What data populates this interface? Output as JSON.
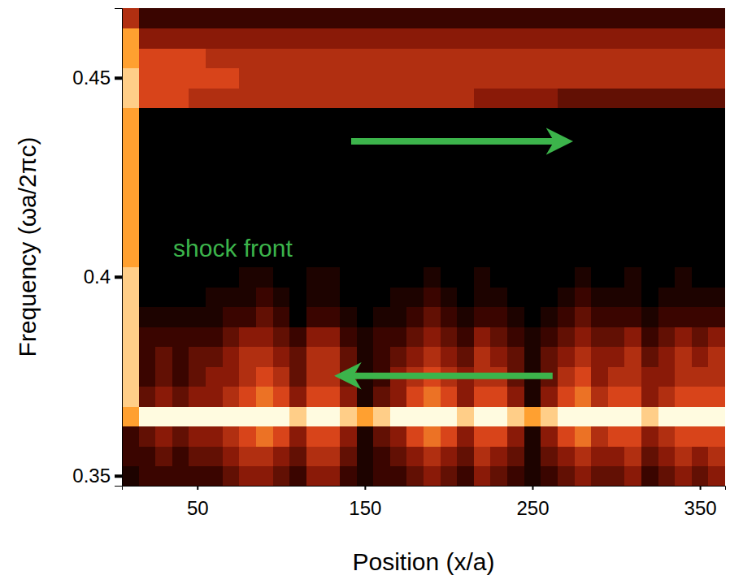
{
  "chart_data": {
    "type": "heatmap",
    "xlabel": "Position (x/a)",
    "ylabel": "Frequency (ωa/2πc)",
    "annotations": [
      "shock front"
    ],
    "xlim": [
      5,
      365
    ],
    "ylim": [
      0.3475,
      0.4675
    ],
    "xticks": [
      50,
      150,
      250,
      350
    ],
    "yticks": [
      0.35,
      0.4,
      0.45
    ],
    "zlim": [
      0,
      10
    ],
    "x_bins": [
      5,
      15,
      25,
      35,
      45,
      55,
      65,
      75,
      85,
      95,
      105,
      115,
      125,
      135,
      145,
      155,
      165,
      175,
      185,
      195,
      205,
      215,
      225,
      235,
      245,
      255,
      265,
      275,
      285,
      295,
      305,
      315,
      325,
      335,
      345,
      355,
      365
    ],
    "y_bins": [
      0.3475,
      0.3525,
      0.3575,
      0.3625,
      0.3675,
      0.3725,
      0.3775,
      0.3825,
      0.3875,
      0.3925,
      0.3975,
      0.4025,
      0.4075,
      0.4125,
      0.4175,
      0.4225,
      0.4275,
      0.4325,
      0.4375,
      0.4425,
      0.4475,
      0.4525,
      0.4575,
      0.4625,
      0.4675
    ],
    "cells": [
      [
        1,
        2,
        2,
        2,
        2,
        2,
        3,
        4,
        4,
        3,
        2,
        4,
        4,
        2,
        1,
        2,
        2,
        3,
        4,
        3,
        2,
        4,
        3,
        2,
        1,
        2,
        3,
        4,
        3,
        3,
        4,
        2,
        3,
        4,
        3,
        4
      ],
      [
        2,
        2,
        3,
        2,
        3,
        3,
        4,
        5,
        5,
        4,
        3,
        5,
        5,
        3,
        1,
        2,
        3,
        4,
        5,
        4,
        3,
        5,
        4,
        3,
        1,
        3,
        4,
        5,
        4,
        4,
        5,
        3,
        4,
        5,
        4,
        5
      ],
      [
        2,
        3,
        4,
        3,
        4,
        4,
        5,
        6,
        7,
        6,
        4,
        6,
        6,
        4,
        1,
        3,
        4,
        6,
        7,
        6,
        4,
        6,
        6,
        4,
        1,
        4,
        6,
        7,
        5,
        6,
        6,
        4,
        5,
        6,
        6,
        6
      ],
      [
        8,
        10,
        10,
        10,
        10,
        10,
        10,
        10,
        10,
        10,
        9,
        10,
        10,
        9,
        8,
        9,
        10,
        10,
        10,
        10,
        9,
        10,
        10,
        9,
        8,
        9,
        10,
        10,
        10,
        10,
        10,
        9,
        10,
        10,
        10,
        10
      ],
      [
        9,
        3,
        4,
        3,
        4,
        4,
        5,
        6,
        7,
        6,
        4,
        6,
        6,
        4,
        1,
        3,
        4,
        6,
        7,
        6,
        4,
        6,
        6,
        4,
        1,
        4,
        6,
        7,
        5,
        6,
        6,
        4,
        5,
        6,
        6,
        6
      ],
      [
        9,
        2,
        3,
        2,
        3,
        4,
        4,
        5,
        6,
        5,
        3,
        5,
        5,
        3,
        1,
        2,
        4,
        5,
        6,
        5,
        4,
        5,
        5,
        3,
        1,
        3,
        5,
        6,
        4,
        5,
        5,
        4,
        4,
        5,
        5,
        5
      ],
      [
        9,
        2,
        3,
        2,
        3,
        3,
        4,
        5,
        5,
        4,
        3,
        5,
        5,
        3,
        1,
        2,
        3,
        4,
        5,
        4,
        3,
        5,
        4,
        3,
        1,
        3,
        4,
        5,
        4,
        4,
        5,
        3,
        4,
        5,
        4,
        5
      ],
      [
        9,
        2,
        2,
        2,
        2,
        2,
        3,
        4,
        4,
        3,
        2,
        4,
        4,
        2,
        1,
        2,
        2,
        3,
        4,
        3,
        2,
        4,
        3,
        2,
        1,
        2,
        3,
        4,
        3,
        3,
        4,
        2,
        3,
        4,
        3,
        4
      ],
      [
        9,
        1,
        1,
        1,
        1,
        1,
        2,
        2,
        3,
        2,
        0,
        2,
        2,
        1,
        0,
        1,
        1,
        2,
        3,
        2,
        1,
        2,
        2,
        1,
        0,
        1,
        2,
        3,
        2,
        2,
        2,
        1,
        2,
        2,
        2,
        2
      ],
      [
        9,
        0,
        0,
        0,
        0,
        1,
        1,
        1,
        2,
        1,
        0,
        1,
        1,
        0,
        0,
        0,
        1,
        1,
        2,
        1,
        0,
        1,
        1,
        0,
        0,
        0,
        1,
        2,
        1,
        1,
        1,
        0,
        1,
        1,
        1,
        1
      ],
      [
        9,
        0,
        0,
        0,
        0,
        0,
        0,
        1,
        1,
        0,
        0,
        1,
        1,
        0,
        0,
        0,
        0,
        0,
        1,
        0,
        0,
        1,
        0,
        0,
        0,
        0,
        0,
        1,
        0,
        0,
        1,
        0,
        0,
        1,
        0,
        0
      ],
      [
        8,
        0,
        0,
        0,
        0,
        0,
        0,
        0,
        0,
        0,
        0,
        0,
        0,
        0,
        0,
        0,
        0,
        0,
        0,
        0,
        0,
        0,
        0,
        0,
        0,
        0,
        0,
        0,
        0,
        0,
        0,
        0,
        0,
        0,
        0,
        0
      ],
      [
        8,
        0,
        0,
        0,
        0,
        0,
        0,
        0,
        0,
        0,
        0,
        0,
        0,
        0,
        0,
        0,
        0,
        0,
        0,
        0,
        0,
        0,
        0,
        0,
        0,
        0,
        0,
        0,
        0,
        0,
        0,
        0,
        0,
        0,
        0,
        0
      ],
      [
        8,
        0,
        0,
        0,
        0,
        0,
        0,
        0,
        0,
        0,
        0,
        0,
        0,
        0,
        0,
        0,
        0,
        0,
        0,
        0,
        0,
        0,
        0,
        0,
        0,
        0,
        0,
        0,
        0,
        0,
        0,
        0,
        0,
        0,
        0,
        0
      ],
      [
        8,
        0,
        0,
        0,
        0,
        0,
        0,
        0,
        0,
        0,
        0,
        0,
        0,
        0,
        0,
        0,
        0,
        0,
        0,
        0,
        0,
        0,
        0,
        0,
        0,
        0,
        0,
        0,
        0,
        0,
        0,
        0,
        0,
        0,
        0,
        0
      ],
      [
        8,
        0,
        0,
        0,
        0,
        0,
        0,
        0,
        0,
        0,
        0,
        0,
        0,
        0,
        0,
        0,
        0,
        0,
        0,
        0,
        0,
        0,
        0,
        0,
        0,
        0,
        0,
        0,
        0,
        0,
        0,
        0,
        0,
        0,
        0,
        0
      ],
      [
        8,
        0,
        0,
        0,
        0,
        0,
        0,
        0,
        0,
        0,
        0,
        0,
        0,
        0,
        0,
        0,
        0,
        0,
        0,
        0,
        0,
        0,
        0,
        0,
        0,
        0,
        0,
        0,
        0,
        0,
        0,
        0,
        0,
        0,
        0,
        0
      ],
      [
        8,
        0,
        0,
        0,
        0,
        0,
        0,
        0,
        0,
        0,
        0,
        0,
        0,
        0,
        0,
        0,
        0,
        0,
        0,
        0,
        0,
        0,
        0,
        0,
        0,
        0,
        0,
        0,
        0,
        0,
        0,
        0,
        0,
        0,
        0,
        0
      ],
      [
        8,
        0,
        0,
        0,
        0,
        0,
        0,
        0,
        0,
        0,
        0,
        0,
        0,
        0,
        0,
        0,
        0,
        0,
        0,
        0,
        0,
        0,
        0,
        0,
        0,
        0,
        0,
        0,
        0,
        0,
        0,
        0,
        0,
        0,
        0,
        0
      ],
      [
        9,
        6,
        6,
        6,
        5,
        5,
        5,
        5,
        5,
        5,
        5,
        5,
        5,
        5,
        5,
        5,
        5,
        5,
        5,
        5,
        5,
        4,
        4,
        4,
        4,
        4,
        3,
        3,
        3,
        3,
        3,
        3,
        3,
        3,
        3,
        3
      ],
      [
        9,
        6,
        6,
        6,
        6,
        6,
        6,
        5,
        5,
        5,
        5,
        5,
        5,
        5,
        5,
        5,
        5,
        5,
        5,
        5,
        5,
        5,
        5,
        5,
        5,
        5,
        5,
        5,
        5,
        5,
        5,
        5,
        5,
        5,
        5,
        5
      ],
      [
        8,
        6,
        6,
        6,
        6,
        5,
        5,
        5,
        5,
        5,
        5,
        5,
        5,
        5,
        5,
        5,
        5,
        5,
        5,
        5,
        5,
        5,
        5,
        5,
        5,
        5,
        5,
        5,
        5,
        5,
        5,
        5,
        5,
        5,
        5,
        5
      ],
      [
        8,
        4,
        4,
        4,
        4,
        4,
        4,
        4,
        4,
        4,
        4,
        4,
        4,
        4,
        4,
        4,
        4,
        4,
        4,
        4,
        4,
        4,
        4,
        4,
        4,
        4,
        4,
        4,
        4,
        4,
        4,
        4,
        4,
        4,
        4,
        4
      ],
      [
        5,
        2,
        2,
        2,
        2,
        2,
        2,
        2,
        2,
        2,
        2,
        2,
        2,
        2,
        2,
        2,
        2,
        2,
        2,
        2,
        2,
        2,
        2,
        2,
        2,
        2,
        2,
        2,
        2,
        2,
        2,
        2,
        2,
        2,
        2,
        2
      ]
    ]
  }
}
